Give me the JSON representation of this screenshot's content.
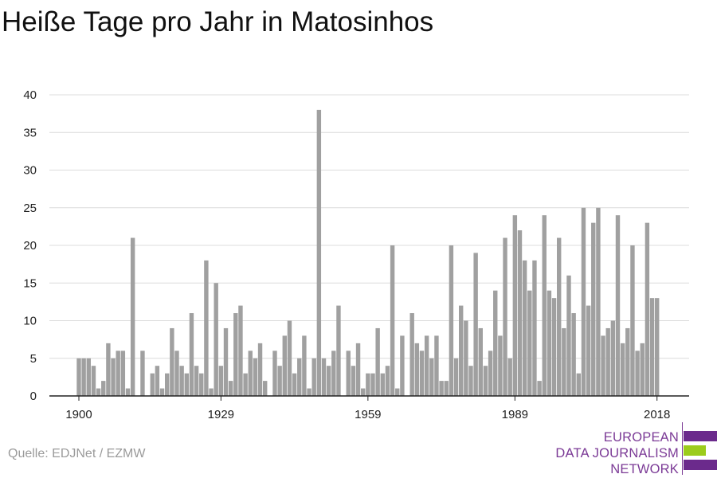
{
  "title": "Heiße Tage pro Jahr in Matosinhos",
  "source": "Quelle: EDJNet / EZMW",
  "logo": {
    "lines": [
      "EUROPEAN",
      "DATA JOURNALISM",
      "NETWORK"
    ],
    "colors": {
      "purple": "#6b2a8c",
      "green": "#9ccc1c"
    }
  },
  "colors": {
    "bar": "#a0a0a0",
    "grid": "#dcdcdc",
    "axis": "#222222",
    "text": "#222222"
  },
  "chart_data": {
    "type": "bar",
    "title": "Heiße Tage pro Jahr in Matosinhos",
    "xlabel": "",
    "ylabel": "",
    "ylim": [
      0,
      40
    ],
    "yticks": [
      0,
      5,
      10,
      15,
      20,
      25,
      30,
      35,
      40
    ],
    "xticks": [
      1900,
      1929,
      1959,
      1989,
      2018
    ],
    "grid": true,
    "x": [
      1900,
      1901,
      1902,
      1903,
      1904,
      1905,
      1906,
      1907,
      1908,
      1909,
      1910,
      1911,
      1912,
      1913,
      1914,
      1915,
      1916,
      1917,
      1918,
      1919,
      1920,
      1921,
      1922,
      1923,
      1924,
      1925,
      1926,
      1927,
      1928,
      1929,
      1930,
      1931,
      1932,
      1933,
      1934,
      1935,
      1936,
      1937,
      1938,
      1939,
      1940,
      1941,
      1942,
      1943,
      1944,
      1945,
      1946,
      1947,
      1948,
      1949,
      1950,
      1951,
      1952,
      1953,
      1954,
      1955,
      1956,
      1957,
      1958,
      1959,
      1960,
      1961,
      1962,
      1963,
      1964,
      1965,
      1966,
      1967,
      1968,
      1969,
      1970,
      1971,
      1972,
      1973,
      1974,
      1975,
      1976,
      1977,
      1978,
      1979,
      1980,
      1981,
      1982,
      1983,
      1984,
      1985,
      1986,
      1987,
      1988,
      1989,
      1990,
      1991,
      1992,
      1993,
      1994,
      1995,
      1996,
      1997,
      1998,
      1999,
      2000,
      2001,
      2002,
      2003,
      2004,
      2005,
      2006,
      2007,
      2008,
      2009,
      2010,
      2011,
      2012,
      2013,
      2014,
      2015,
      2016,
      2017,
      2018,
      2019
    ],
    "values": [
      5,
      5,
      5,
      4,
      1,
      2,
      7,
      5,
      6,
      6,
      1,
      21,
      0,
      6,
      0,
      3,
      4,
      1,
      3,
      9,
      6,
      4,
      3,
      11,
      4,
      3,
      18,
      1,
      15,
      4,
      9,
      2,
      11,
      12,
      3,
      6,
      5,
      7,
      2,
      0,
      6,
      4,
      8,
      10,
      3,
      5,
      8,
      1,
      5,
      38,
      5,
      4,
      6,
      12,
      0,
      6,
      4,
      7,
      1,
      3,
      3,
      9,
      3,
      4,
      20,
      1,
      8,
      0,
      11,
      7,
      6,
      8,
      5,
      8,
      2,
      2,
      20,
      5,
      12,
      10,
      4,
      19,
      9,
      4,
      6,
      14,
      8,
      21,
      5,
      24,
      22,
      18,
      14,
      18,
      2,
      24,
      14,
      13,
      21,
      9,
      16,
      11,
      3,
      25,
      12,
      23,
      25,
      8,
      9,
      10,
      24,
      7,
      9,
      20,
      6,
      7,
      23,
      13,
      13,
      0
    ]
  }
}
